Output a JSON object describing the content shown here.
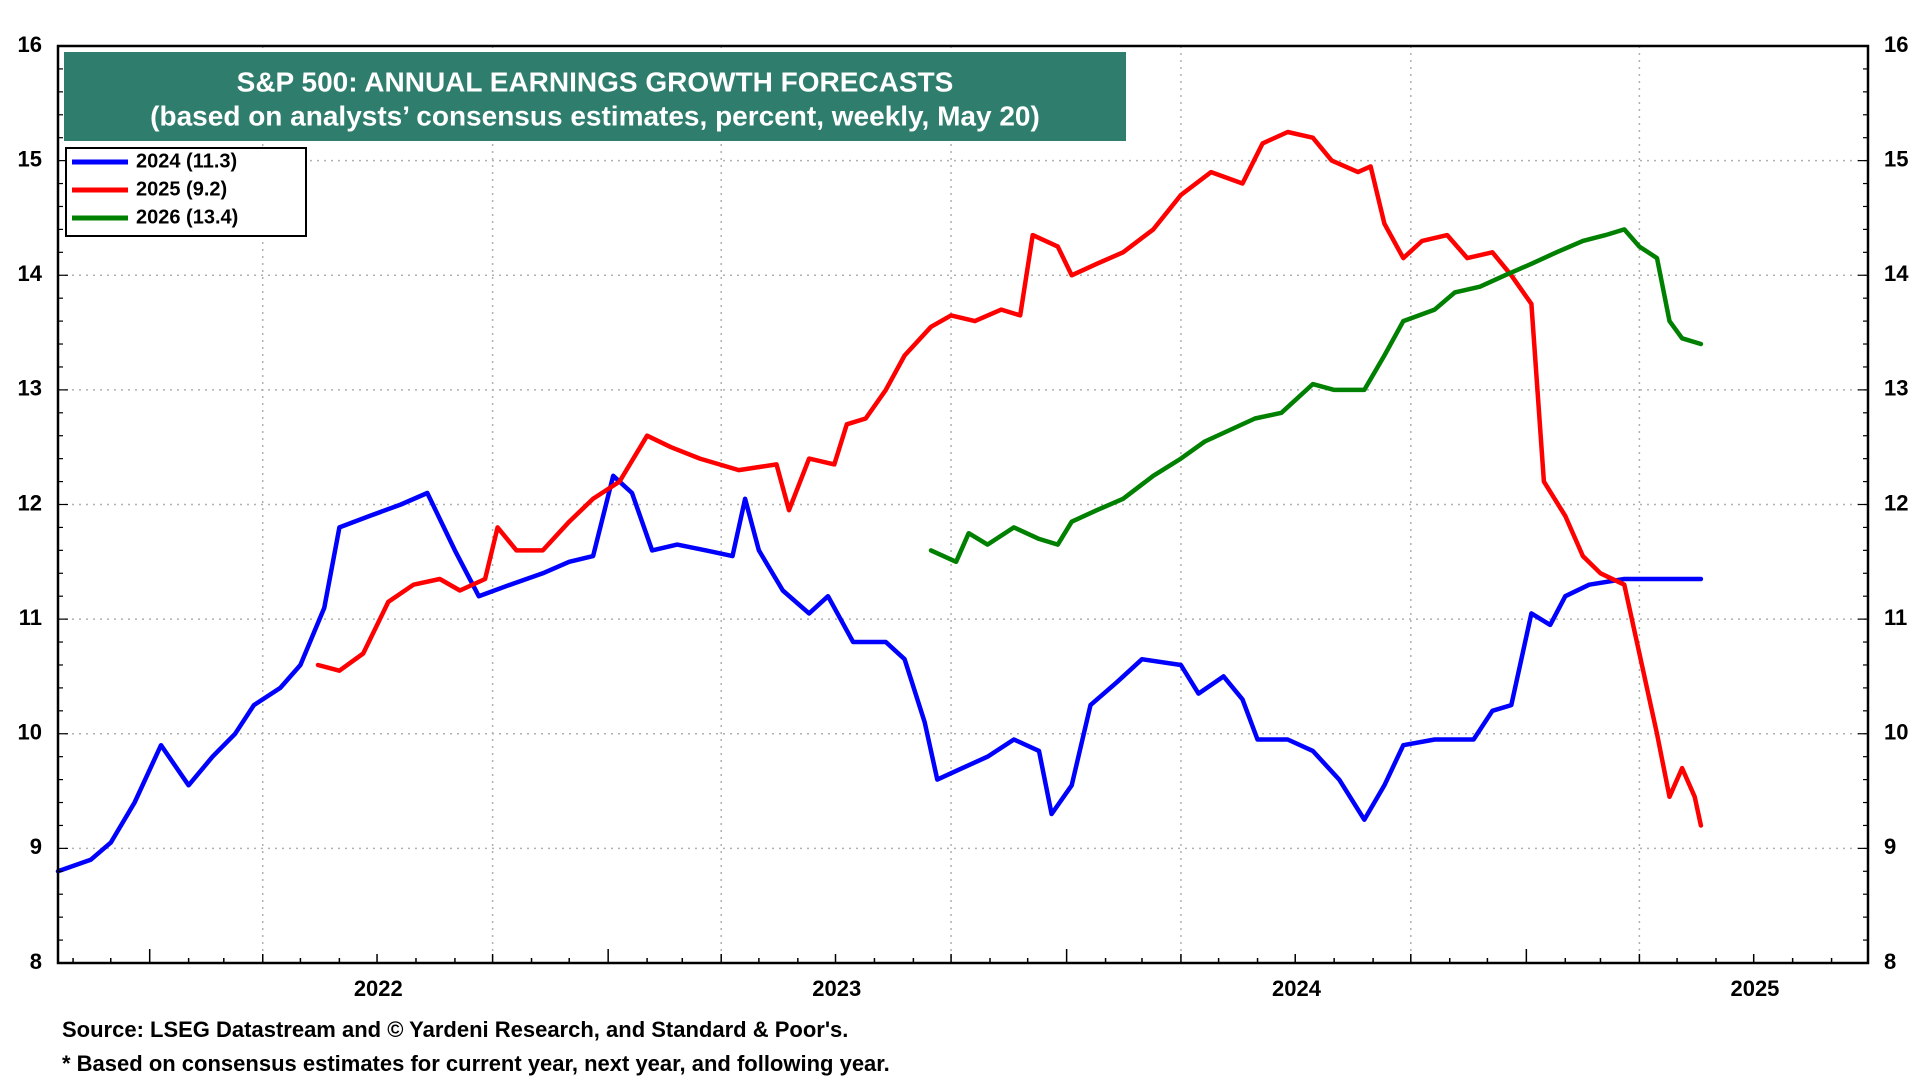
{
  "footnotes": {
    "source": "Source: LSEG Datastream and © Yardeni Research, and Standard & Poor's.",
    "note": "* Based on consensus estimates for current year, next year, and following year."
  },
  "colors": {
    "title_bg": "#2e7d6d",
    "grid": "#b0b0b0",
    "series_2024": "#0000ff",
    "series_2025": "#ff0000",
    "series_2026": "#008000"
  },
  "chart_data": {
    "type": "line",
    "title": "S&P 500: ANNUAL EARNINGS GROWTH FORECASTS",
    "subtitle": "(based on analysts’ consensus estimates, percent, weekly, May 20)",
    "xlabel": "",
    "ylabel": "",
    "x_axis_type": "date",
    "xlim": [
      "2021-10-20",
      "2025-09-30"
    ],
    "ylim": [
      8,
      16
    ],
    "y_ticks": [
      "8",
      "9",
      "10",
      "11",
      "12",
      "13",
      "14",
      "15",
      "16"
    ],
    "x_year_labels": [
      "2022",
      "2023",
      "2024",
      "2025"
    ],
    "grid": "dotted",
    "legend_position": "top-left",
    "series": [
      {
        "name": "2024 (11.3)",
        "color": "#0000ff",
        "points": [
          [
            "2021-10-20",
            8.8
          ],
          [
            "2021-11-15",
            8.9
          ],
          [
            "2021-12-01",
            9.05
          ],
          [
            "2021-12-20",
            9.4
          ],
          [
            "2022-01-10",
            9.9
          ],
          [
            "2022-02-01",
            9.55
          ],
          [
            "2022-02-20",
            9.8
          ],
          [
            "2022-03-10",
            10.0
          ],
          [
            "2022-03-25",
            10.25
          ],
          [
            "2022-04-15",
            10.4
          ],
          [
            "2022-05-01",
            10.6
          ],
          [
            "2022-05-20",
            11.1
          ],
          [
            "2022-06-01",
            11.8
          ],
          [
            "2022-06-25",
            11.9
          ],
          [
            "2022-07-20",
            12.0
          ],
          [
            "2022-08-10",
            12.1
          ],
          [
            "2022-09-01",
            11.6
          ],
          [
            "2022-09-20",
            11.2
          ],
          [
            "2022-10-15",
            11.3
          ],
          [
            "2022-11-10",
            11.4
          ],
          [
            "2022-12-01",
            11.5
          ],
          [
            "2022-12-20",
            11.55
          ],
          [
            "2023-01-05",
            12.25
          ],
          [
            "2023-01-20",
            12.1
          ],
          [
            "2023-02-05",
            11.6
          ],
          [
            "2023-02-25",
            11.65
          ],
          [
            "2023-03-20",
            11.6
          ],
          [
            "2023-04-10",
            11.55
          ],
          [
            "2023-04-20",
            12.05
          ],
          [
            "2023-05-01",
            11.6
          ],
          [
            "2023-05-20",
            11.25
          ],
          [
            "2023-06-10",
            11.05
          ],
          [
            "2023-06-25",
            11.2
          ],
          [
            "2023-07-15",
            10.8
          ],
          [
            "2023-08-10",
            10.8
          ],
          [
            "2023-08-25",
            10.65
          ],
          [
            "2023-09-10",
            10.1
          ],
          [
            "2023-09-20",
            9.6
          ],
          [
            "2023-10-10",
            9.7
          ],
          [
            "2023-10-30",
            9.8
          ],
          [
            "2023-11-20",
            9.95
          ],
          [
            "2023-12-10",
            9.85
          ],
          [
            "2023-12-20",
            9.3
          ],
          [
            "2024-01-05",
            9.55
          ],
          [
            "2024-01-20",
            10.25
          ],
          [
            "2024-02-10",
            10.45
          ],
          [
            "2024-03-01",
            10.65
          ],
          [
            "2024-04-01",
            10.6
          ],
          [
            "2024-04-15",
            10.35
          ],
          [
            "2024-05-05",
            10.5
          ],
          [
            "2024-05-20",
            10.3
          ],
          [
            "2024-06-01",
            9.95
          ],
          [
            "2024-06-25",
            9.95
          ],
          [
            "2024-07-15",
            9.85
          ],
          [
            "2024-08-05",
            9.6
          ],
          [
            "2024-08-25",
            9.25
          ],
          [
            "2024-09-10",
            9.55
          ],
          [
            "2024-09-25",
            9.9
          ],
          [
            "2024-10-20",
            9.95
          ],
          [
            "2024-11-20",
            9.95
          ],
          [
            "2024-12-05",
            10.2
          ],
          [
            "2024-12-20",
            10.25
          ],
          [
            "2025-01-05",
            11.05
          ],
          [
            "2025-01-20",
            10.95
          ],
          [
            "2025-02-01",
            11.2
          ],
          [
            "2025-02-20",
            11.3
          ],
          [
            "2025-03-20",
            11.35
          ],
          [
            "2025-05-20",
            11.35
          ]
        ]
      },
      {
        "name": "2025 (9.2)",
        "color": "#ff0000",
        "points": [
          [
            "2022-05-15",
            10.6
          ],
          [
            "2022-06-01",
            10.55
          ],
          [
            "2022-06-20",
            10.7
          ],
          [
            "2022-07-10",
            11.15
          ],
          [
            "2022-07-30",
            11.3
          ],
          [
            "2022-08-20",
            11.35
          ],
          [
            "2022-09-05",
            11.25
          ],
          [
            "2022-09-25",
            11.35
          ],
          [
            "2022-10-05",
            11.8
          ],
          [
            "2022-10-20",
            11.6
          ],
          [
            "2022-11-10",
            11.6
          ],
          [
            "2022-12-01",
            11.85
          ],
          [
            "2022-12-20",
            12.05
          ],
          [
            "2023-01-10",
            12.2
          ],
          [
            "2023-02-01",
            12.6
          ],
          [
            "2023-02-20",
            12.5
          ],
          [
            "2023-03-15",
            12.4
          ],
          [
            "2023-04-15",
            12.3
          ],
          [
            "2023-05-15",
            12.35
          ],
          [
            "2023-05-25",
            11.95
          ],
          [
            "2023-06-10",
            12.4
          ],
          [
            "2023-06-30",
            12.35
          ],
          [
            "2023-07-10",
            12.7
          ],
          [
            "2023-07-25",
            12.75
          ],
          [
            "2023-08-10",
            13.0
          ],
          [
            "2023-08-25",
            13.3
          ],
          [
            "2023-09-15",
            13.55
          ],
          [
            "2023-10-01",
            13.65
          ],
          [
            "2023-10-20",
            13.6
          ],
          [
            "2023-11-10",
            13.7
          ],
          [
            "2023-11-25",
            13.65
          ],
          [
            "2023-12-05",
            14.35
          ],
          [
            "2023-12-25",
            14.25
          ],
          [
            "2024-01-05",
            14.0
          ],
          [
            "2024-01-25",
            14.1
          ],
          [
            "2024-02-15",
            14.2
          ],
          [
            "2024-03-10",
            14.4
          ],
          [
            "2024-04-01",
            14.7
          ],
          [
            "2024-04-25",
            14.9
          ],
          [
            "2024-05-20",
            14.8
          ],
          [
            "2024-06-05",
            15.15
          ],
          [
            "2024-06-25",
            15.25
          ],
          [
            "2024-07-15",
            15.2
          ],
          [
            "2024-07-30",
            15.0
          ],
          [
            "2024-08-20",
            14.9
          ],
          [
            "2024-08-30",
            14.95
          ],
          [
            "2024-09-10",
            14.45
          ],
          [
            "2024-09-25",
            14.15
          ],
          [
            "2024-10-10",
            14.3
          ],
          [
            "2024-10-30",
            14.35
          ],
          [
            "2024-11-15",
            14.15
          ],
          [
            "2024-12-05",
            14.2
          ],
          [
            "2024-12-20",
            14.0
          ],
          [
            "2025-01-05",
            13.75
          ],
          [
            "2025-01-15",
            12.2
          ],
          [
            "2025-02-01",
            11.9
          ],
          [
            "2025-02-15",
            11.55
          ],
          [
            "2025-03-01",
            11.4
          ],
          [
            "2025-03-20",
            11.3
          ],
          [
            "2025-04-01",
            10.7
          ],
          [
            "2025-04-15",
            10.0
          ],
          [
            "2025-04-25",
            9.45
          ],
          [
            "2025-05-05",
            9.7
          ],
          [
            "2025-05-15",
            9.45
          ],
          [
            "2025-05-20",
            9.2
          ]
        ]
      },
      {
        "name": "2026 (13.4)",
        "color": "#008000",
        "points": [
          [
            "2023-09-15",
            11.6
          ],
          [
            "2023-10-05",
            11.5
          ],
          [
            "2023-10-15",
            11.75
          ],
          [
            "2023-10-30",
            11.65
          ],
          [
            "2023-11-20",
            11.8
          ],
          [
            "2023-12-10",
            11.7
          ],
          [
            "2023-12-25",
            11.65
          ],
          [
            "2024-01-05",
            11.85
          ],
          [
            "2024-01-25",
            11.95
          ],
          [
            "2024-02-15",
            12.05
          ],
          [
            "2024-03-10",
            12.25
          ],
          [
            "2024-04-01",
            12.4
          ],
          [
            "2024-04-20",
            12.55
          ],
          [
            "2024-05-10",
            12.65
          ],
          [
            "2024-05-30",
            12.75
          ],
          [
            "2024-06-20",
            12.8
          ],
          [
            "2024-07-15",
            13.05
          ],
          [
            "2024-08-01",
            13.0
          ],
          [
            "2024-08-25",
            13.0
          ],
          [
            "2024-09-10",
            13.3
          ],
          [
            "2024-09-25",
            13.6
          ],
          [
            "2024-10-20",
            13.7
          ],
          [
            "2024-11-05",
            13.85
          ],
          [
            "2024-11-25",
            13.9
          ],
          [
            "2024-12-15",
            14.0
          ],
          [
            "2025-01-05",
            14.1
          ],
          [
            "2025-01-25",
            14.2
          ],
          [
            "2025-02-15",
            14.3
          ],
          [
            "2025-03-05",
            14.35
          ],
          [
            "2025-03-20",
            14.4
          ],
          [
            "2025-04-01",
            14.25
          ],
          [
            "2025-04-15",
            14.15
          ],
          [
            "2025-04-25",
            13.6
          ],
          [
            "2025-05-05",
            13.45
          ],
          [
            "2025-05-20",
            13.4
          ]
        ]
      }
    ]
  }
}
